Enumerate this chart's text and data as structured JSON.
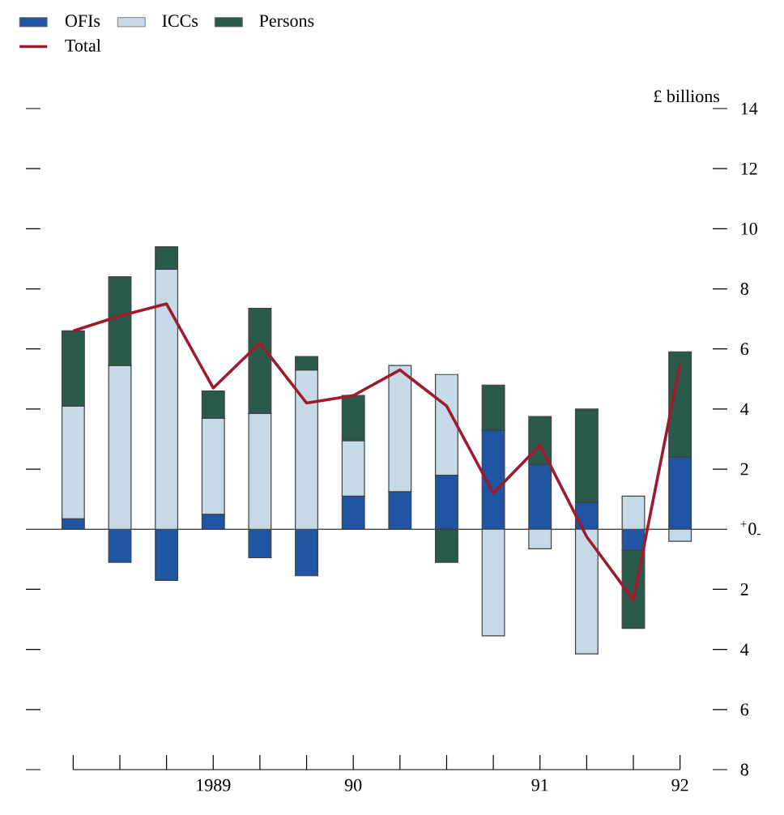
{
  "chart_data": {
    "type": "bar",
    "stacked": true,
    "ylabel": "£ billions",
    "categories": [
      null,
      null,
      null,
      "1989",
      null,
      null,
      "90",
      null,
      null,
      null,
      "91",
      null,
      null,
      "92"
    ],
    "series": [
      {
        "name": "OFIs",
        "color": "#1f55a3",
        "values": [
          0.35,
          -1.1,
          -1.7,
          0.5,
          -0.95,
          -1.55,
          1.1,
          1.25,
          1.8,
          3.3,
          2.15,
          0.9,
          -0.7,
          2.4
        ]
      },
      {
        "name": "ICCs",
        "color": "#c6d9e6",
        "values": [
          3.75,
          5.45,
          8.65,
          3.2,
          3.85,
          5.3,
          1.85,
          4.2,
          3.35,
          -3.55,
          -0.65,
          -4.15,
          1.1,
          -0.4
        ]
      },
      {
        "name": "Persons",
        "color": "#2a5a4c",
        "values": [
          2.5,
          2.95,
          0.75,
          0.9,
          3.5,
          0.45,
          1.5,
          0,
          -1.1,
          1.5,
          1.6,
          3.1,
          -2.6,
          3.5
        ]
      },
      {
        "name": "Total",
        "type": "line",
        "color": "#9e1b2e",
        "marker": "none",
        "values": [
          6.6,
          7.1,
          7.5,
          4.7,
          6.2,
          4.2,
          4.45,
          5.3,
          4.1,
          1.2,
          2.8,
          -0.25,
          -2.35,
          5.5
        ]
      }
    ],
    "ylim": [
      -8,
      14
    ],
    "yticks": [
      {
        "value": -8,
        "label": "8"
      },
      {
        "value": -6,
        "label": "6"
      },
      {
        "value": -4,
        "label": "4"
      },
      {
        "value": -2,
        "label": "2"
      },
      {
        "value": 0,
        "label": "$^{+}$0$_{-}$"
      },
      2,
      4,
      6,
      8,
      10,
      12,
      14
    ],
    "ref_lines": [
      {
        "axis": "y",
        "value": 0
      }
    ],
    "grid": false,
    "legend": "top left"
  }
}
